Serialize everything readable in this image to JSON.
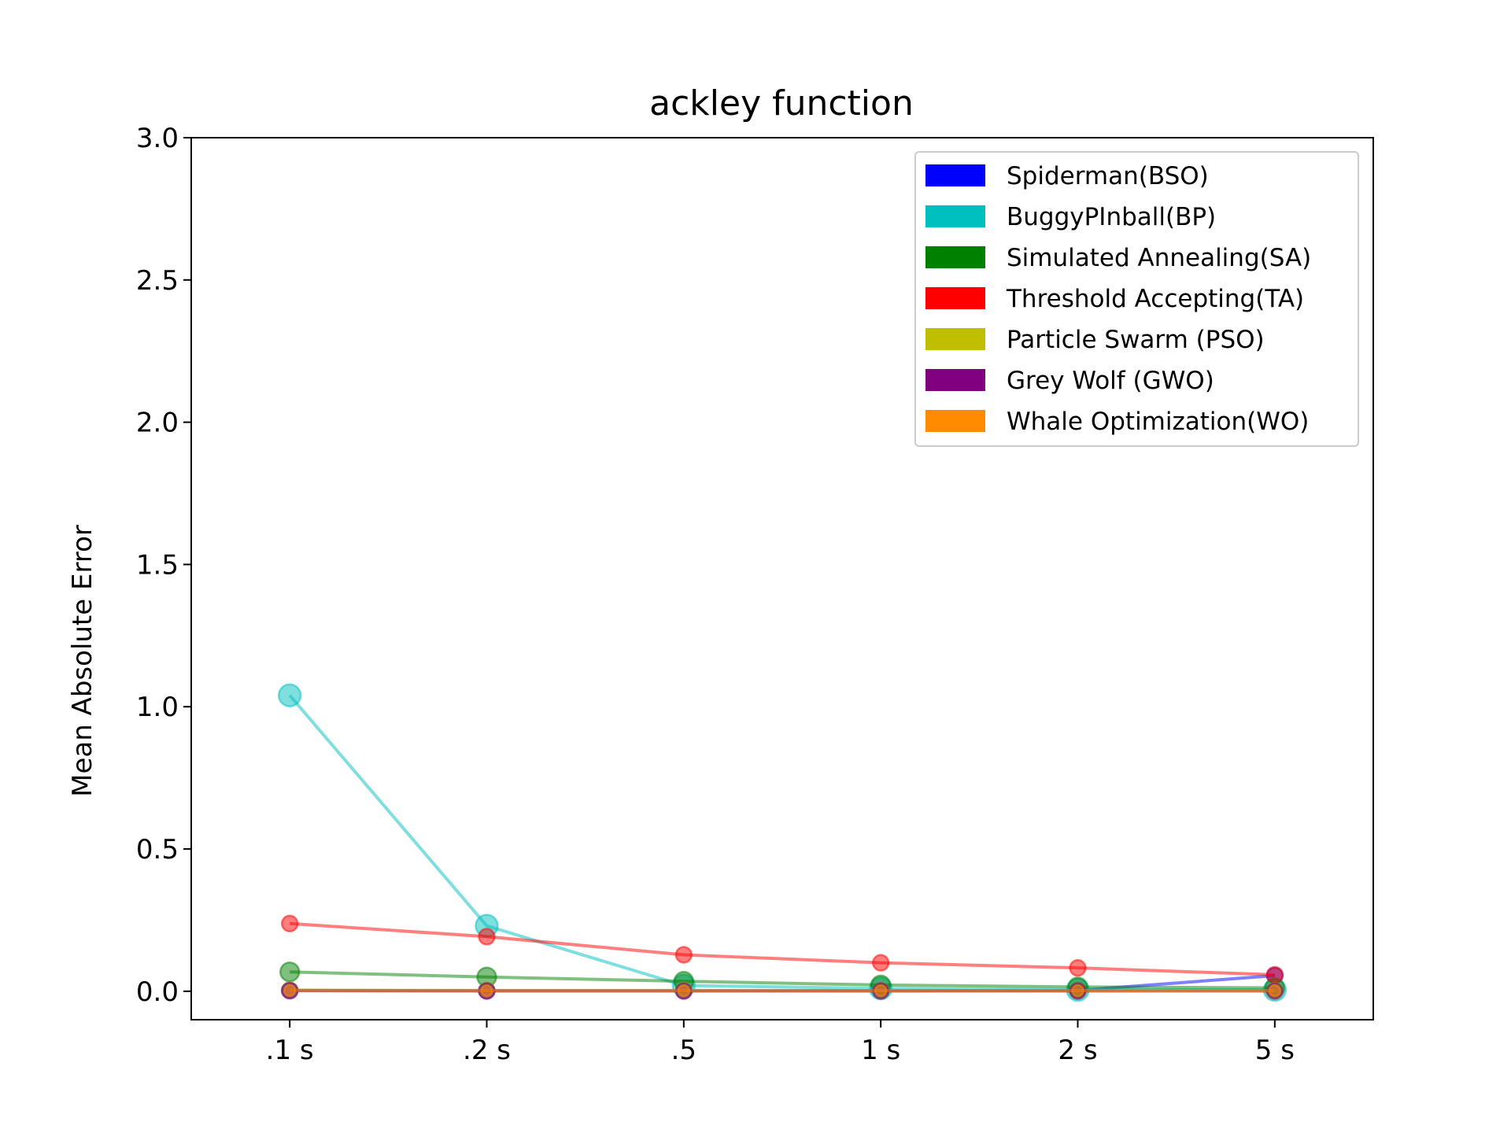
{
  "chart_data": {
    "type": "line",
    "title": "ackley function",
    "xlabel": "",
    "ylabel": "Mean Absolute Error",
    "categories": [
      ".1 s",
      ".2 s",
      ".5",
      "1 s",
      "2 s",
      "5 s"
    ],
    "ylim": [
      -0.1,
      3.0
    ],
    "yticks": [
      0.0,
      0.5,
      1.0,
      1.5,
      2.0,
      2.5,
      3.0
    ],
    "ytick_labels": [
      "0.0",
      "0.5",
      "1.0",
      "1.5",
      "2.0",
      "2.5",
      "3.0"
    ],
    "grid": false,
    "legend_position": "top-right",
    "series": [
      {
        "name": "Spiderman(BSO)",
        "color": "#0000ff",
        "values": [
          0.003,
          0.002,
          0.002,
          0.002,
          0.003,
          0.055
        ],
        "marker_size": "small"
      },
      {
        "name": "BuggyPInball(BP)",
        "color": "#00bfbf",
        "values": [
          1.04,
          0.23,
          0.02,
          0.01,
          0.005,
          0.005
        ],
        "marker_size": "large"
      },
      {
        "name": "Simulated Annealing(SA)",
        "color": "#008000",
        "values": [
          0.068,
          0.05,
          0.035,
          0.022,
          0.015,
          0.012
        ],
        "marker_size": "medium"
      },
      {
        "name": "Threshold Accepting(TA)",
        "color": "#ff0000",
        "values": [
          0.238,
          0.192,
          0.128,
          0.1,
          0.082,
          0.058
        ],
        "marker_size": "small"
      },
      {
        "name": "Particle Swarm (PSO)",
        "color": "#bfbf00",
        "values": [
          0.004,
          0.003,
          0.003,
          0.002,
          0.002,
          0.002
        ],
        "marker_size": "small"
      },
      {
        "name": "Grey Wolf (GWO)",
        "color": "#800080",
        "values": [
          0.002,
          0.001,
          0.001,
          0.001,
          0.001,
          0.001
        ],
        "marker_size": "small"
      },
      {
        "name": "Whale Optimization(WO)",
        "color": "#ff8c00",
        "values": [
          0.003,
          0.002,
          0.002,
          0.002,
          0.002,
          0.002
        ],
        "marker_size": "tiny"
      }
    ]
  }
}
